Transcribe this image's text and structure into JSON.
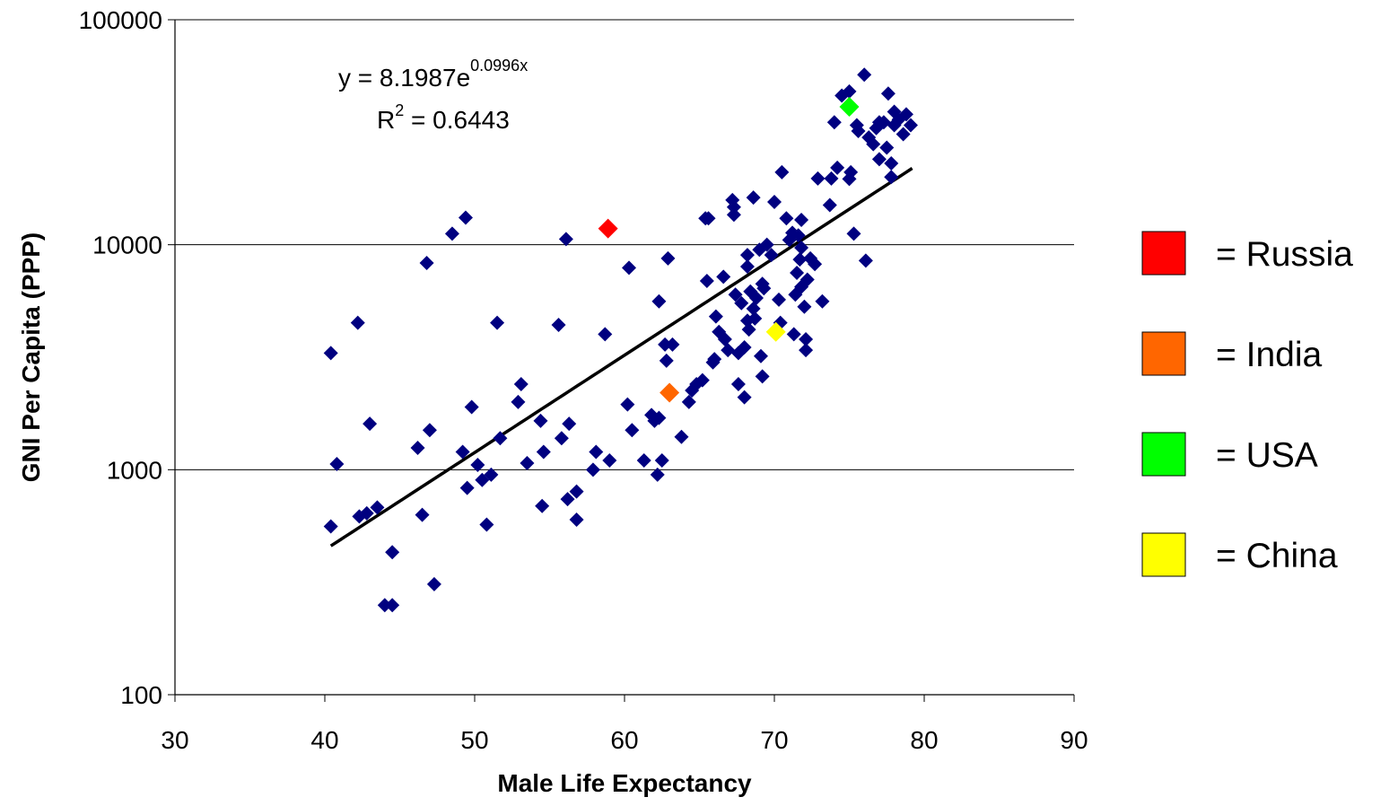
{
  "chart_data": {
    "type": "scatter",
    "x_label": "Male Life Expectancy",
    "y_label": "GNI Per Capita (PPP)",
    "xlim": [
      30,
      90
    ],
    "xticks": [
      30,
      40,
      50,
      60,
      70,
      80,
      90
    ],
    "ylim": [
      100,
      100000
    ],
    "yticks": [
      100,
      1000,
      10000,
      100000
    ],
    "y_scale": "log",
    "grid": true,
    "legend_position": "right",
    "legend_prefix": "= ",
    "series": [
      {
        "color": "#000080",
        "x": [
          40.4,
          40.4,
          40.8,
          42.2,
          42.3,
          42.8,
          43,
          43.5,
          44,
          44.5,
          44.5,
          46.2,
          46.5,
          46.8,
          47,
          47.3,
          48.5,
          49.2,
          49.4,
          49.5,
          49.8,
          50.2,
          50.5,
          50.8,
          51.1,
          51.5,
          51.7,
          52.9,
          53.1,
          53.5,
          54.4,
          54.5,
          54.6,
          55.6,
          55.8,
          56.1,
          56.2,
          56.3,
          56.8,
          56.8,
          57.9,
          58.1,
          58.7,
          59,
          60.2,
          60.3,
          60.5,
          61.3,
          61.8,
          62,
          62.3,
          62.2,
          62.3,
          62.5,
          62.7,
          62.8,
          62.9,
          63.2,
          63.8,
          64.3,
          64.5,
          64.8,
          65.2,
          65.4,
          65.6,
          65.5,
          65.9,
          66,
          66.1,
          66.3,
          66.6,
          66.7,
          66.9,
          67.2,
          67.3,
          67.3,
          67.4,
          67.6,
          67.6,
          67.8,
          68,
          68,
          68.2,
          68.2,
          68.2,
          68.3,
          68.4,
          68.6,
          68.6,
          68.7,
          68.8,
          69,
          69.1,
          69.2,
          69.2,
          69.3,
          69.5,
          69.8,
          70,
          70.3,
          70.4,
          70.5,
          70.8,
          71,
          71.2,
          71.3,
          71.4,
          71.5,
          71.6,
          71.7,
          71.8,
          71.8,
          71.8,
          72,
          72.1,
          72.1,
          72.2,
          72.4,
          72.7,
          72.9,
          73.2,
          73.7,
          73.8,
          74,
          74.2,
          74.5,
          75,
          75,
          75.1,
          75.3,
          75.5,
          75.6,
          76,
          76.1,
          76.3,
          76.6,
          76.8,
          77,
          77,
          77.3,
          77.5,
          77.6,
          77.8,
          77.8,
          78,
          78,
          78.3,
          78.6,
          78.8,
          79.1
        ],
        "values": [
          3300,
          560,
          1060,
          4500,
          620,
          640,
          1600,
          680,
          250,
          250,
          430,
          1250,
          630,
          8300,
          1500,
          310,
          11200,
          1200,
          13200,
          830,
          1900,
          1050,
          900,
          570,
          950,
          4500,
          1380,
          2000,
          2400,
          1070,
          1650,
          690,
          1200,
          4400,
          1380,
          10600,
          740,
          1600,
          800,
          600,
          1000,
          1200,
          4000,
          1100,
          1950,
          7900,
          1500,
          1100,
          1750,
          1650,
          1700,
          950,
          5600,
          1100,
          3600,
          3050,
          8700,
          3600,
          1400,
          2000,
          2250,
          2400,
          2500,
          13100,
          13100,
          6900,
          3000,
          3100,
          4800,
          4100,
          7200,
          3800,
          3400,
          15800,
          14700,
          13600,
          6000,
          3300,
          2400,
          5500,
          3500,
          2100,
          8000,
          9000,
          4600,
          4200,
          6200,
          16200,
          5200,
          4700,
          5800,
          9500,
          3200,
          6700,
          2600,
          6400,
          10000,
          9000,
          15500,
          5700,
          4500,
          21000,
          13100,
          10500,
          11300,
          4000,
          6000,
          7500,
          11000,
          8600,
          12900,
          6500,
          9700,
          5300,
          3800,
          3400,
          7000,
          8700,
          8200,
          19700,
          5600,
          15000,
          19700,
          35000,
          22000,
          46000,
          19600,
          48000,
          21000,
          11200,
          34000,
          32000,
          57000,
          8500,
          30000,
          28000,
          33000,
          24000,
          35000,
          35000,
          27000,
          47000,
          23000,
          20000,
          39000,
          34000,
          36000,
          31000,
          38000,
          34000
        ]
      },
      {
        "name": "Russia",
        "color": "#ff0000",
        "x": [
          58.9
        ],
        "values": [
          11800
        ]
      },
      {
        "name": "India",
        "color": "#ff6600",
        "x": [
          63
        ],
        "values": [
          2200
        ]
      },
      {
        "name": "USA",
        "color": "#00ff00",
        "x": [
          75
        ],
        "values": [
          41000
        ]
      },
      {
        "name": "China",
        "color": "#ffff00",
        "x": [
          70.1
        ],
        "values": [
          4100
        ]
      }
    ],
    "trendline": {
      "color": "#000000",
      "xlim": [
        40.4,
        79.2
      ],
      "coefficient": 8.1987,
      "exponent": 0.0996,
      "r_squared": 0.6443,
      "equation_prefix": "y = ",
      "equation_base": "e",
      "equation_variable": "x",
      "r_label": "R",
      "r_power": "2",
      "r_equals": " = "
    }
  }
}
